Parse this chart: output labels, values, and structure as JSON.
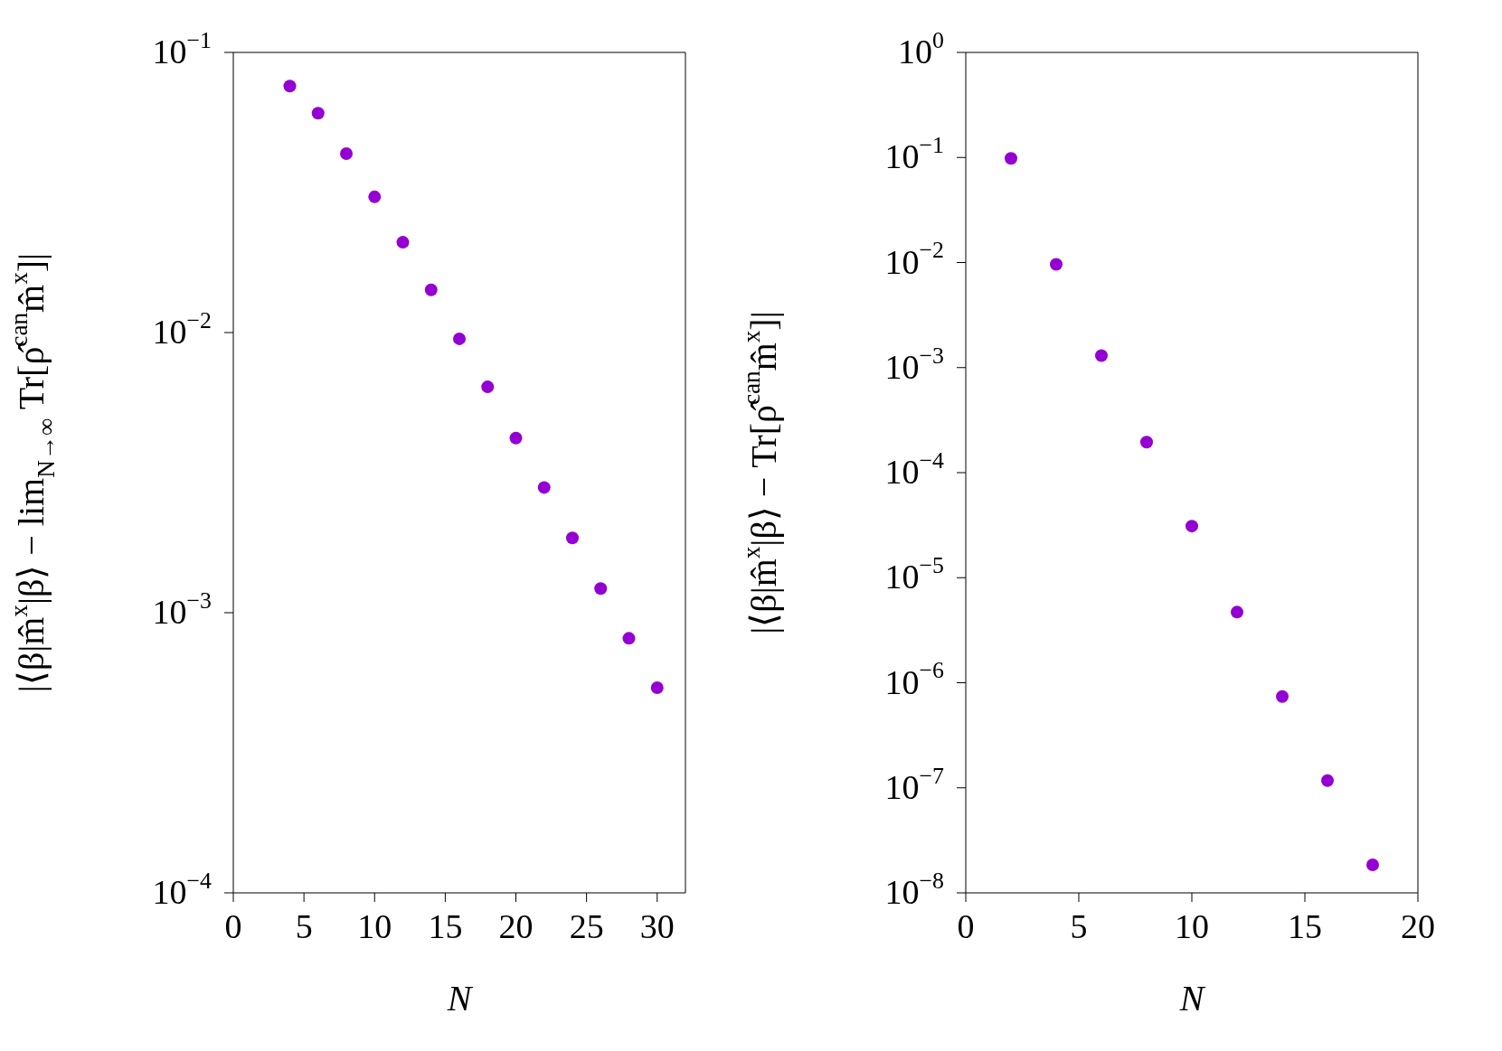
{
  "chart_data": [
    {
      "type": "scatter",
      "xlabel": "N",
      "ylabel": "|⟨β|m̂$^{x}$|β⟩ − lim$_{N→∞}$ Tr[ρ̂$^{can}$m̂$^{x}$]|",
      "log": "y",
      "marker": "circle",
      "xlim": [
        0,
        32
      ],
      "xticks": [
        0,
        5,
        10,
        15,
        20,
        25,
        30
      ],
      "ylim": [
        0.0001,
        0.1
      ],
      "yticks": [
        {
          "value": 0.0001,
          "label": "10$^{−4}$"
        },
        {
          "value": 0.001,
          "label": "10$^{−3}$"
        },
        {
          "value": 0.01,
          "label": "10$^{−2}$"
        },
        {
          "value": 0.1,
          "label": "10$^{−1}$"
        }
      ],
      "x": [
        4,
        6,
        8,
        10,
        12,
        14,
        16,
        18,
        20,
        22,
        24,
        26,
        28,
        30
      ],
      "series": [
        {
          "color": "#9400d3",
          "values": [
            0.0758,
            0.0607,
            0.0435,
            0.0305,
            0.021,
            0.0142,
            0.0095,
            0.0064,
            0.0042,
            0.0028,
            0.00185,
            0.00122,
            0.00081,
            0.00054
          ]
        }
      ]
    },
    {
      "type": "scatter",
      "xlabel": "N",
      "ylabel": "|⟨β|m̂$^{x}$|β⟩ − Tr[ρ̂$^{can}$m̂$^{x}$]|",
      "log": "y",
      "marker": "circle",
      "xlim": [
        0,
        20
      ],
      "xticks": [
        0,
        5,
        10,
        15,
        20
      ],
      "ylim": [
        1e-08,
        1
      ],
      "yticks": [
        {
          "value": 1e-08,
          "label": "10$^{−8}$"
        },
        {
          "value": 1e-07,
          "label": "10$^{−7}$"
        },
        {
          "value": 1e-06,
          "label": "10$^{−6}$"
        },
        {
          "value": 1e-05,
          "label": "10$^{−5}$"
        },
        {
          "value": 0.0001,
          "label": "10$^{−4}$"
        },
        {
          "value": 0.001,
          "label": "10$^{−3}$"
        },
        {
          "value": 0.01,
          "label": "10$^{−2}$"
        },
        {
          "value": 0.1,
          "label": "10$^{−1}$"
        },
        {
          "value": 1,
          "label": "10$^{0}$"
        }
      ],
      "x": [
        2,
        4,
        6,
        8,
        10,
        12,
        14,
        16,
        18
      ],
      "series": [
        {
          "color": "#9400d3",
          "values": [
            0.098,
            0.0096,
            0.0013,
            0.000195,
            3.1e-05,
            4.7e-06,
            7.4e-07,
            1.17e-07,
            1.85e-08
          ]
        }
      ]
    }
  ]
}
